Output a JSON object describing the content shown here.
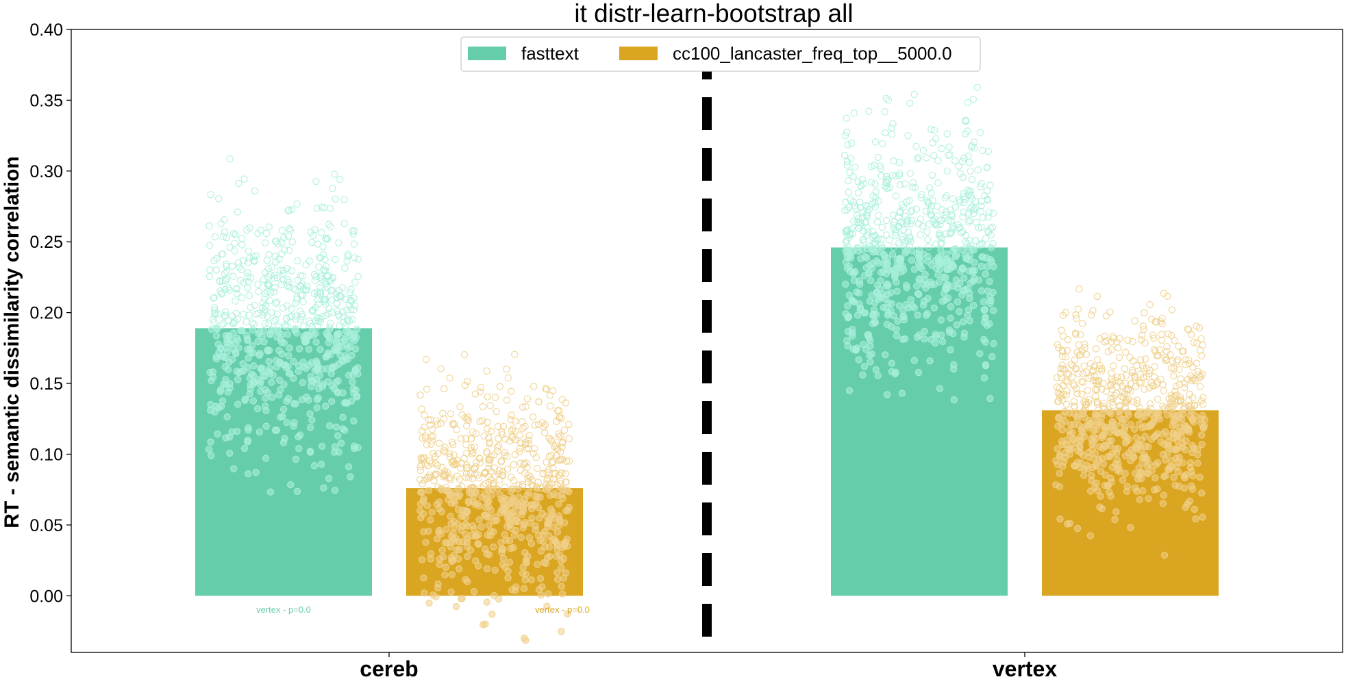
{
  "chart_data": {
    "type": "bar",
    "title": "it distr-learn-bootstrap all",
    "xlabel": "",
    "ylabel": "RT - semantic dissimilarity correlation",
    "ylim": [
      -0.04,
      0.4
    ],
    "yticks": [
      "0.00",
      "0.05",
      "0.10",
      "0.15",
      "0.20",
      "0.25",
      "0.30",
      "0.35",
      "0.40"
    ],
    "categories": [
      "cereb",
      "vertex"
    ],
    "legend_position": "top-center",
    "grid": false,
    "series": [
      {
        "name": "fasttext",
        "color": "#66cdaa",
        "point_color": "#aaf0dc",
        "values": [
          0.189,
          0.246
        ],
        "point_ranges": [
          [
            0.072,
            0.329
          ],
          [
            0.136,
            0.365
          ]
        ]
      },
      {
        "name": "cc100_lancaster_freq_top__5000.0",
        "color": "#daa520",
        "point_color": "#f0d08a",
        "values": [
          0.076,
          0.131
        ],
        "point_ranges": [
          [
            -0.035,
            0.173
          ],
          [
            0.019,
            0.219
          ]
        ]
      }
    ],
    "annotations": [
      {
        "text": "vertex - p=0.0",
        "series": 0,
        "category": 0,
        "y": -0.008
      },
      {
        "text": "vertex - p=0.0",
        "series": 1,
        "category": 0,
        "y": -0.008
      }
    ],
    "divider": "dashed vertical line between categories"
  }
}
